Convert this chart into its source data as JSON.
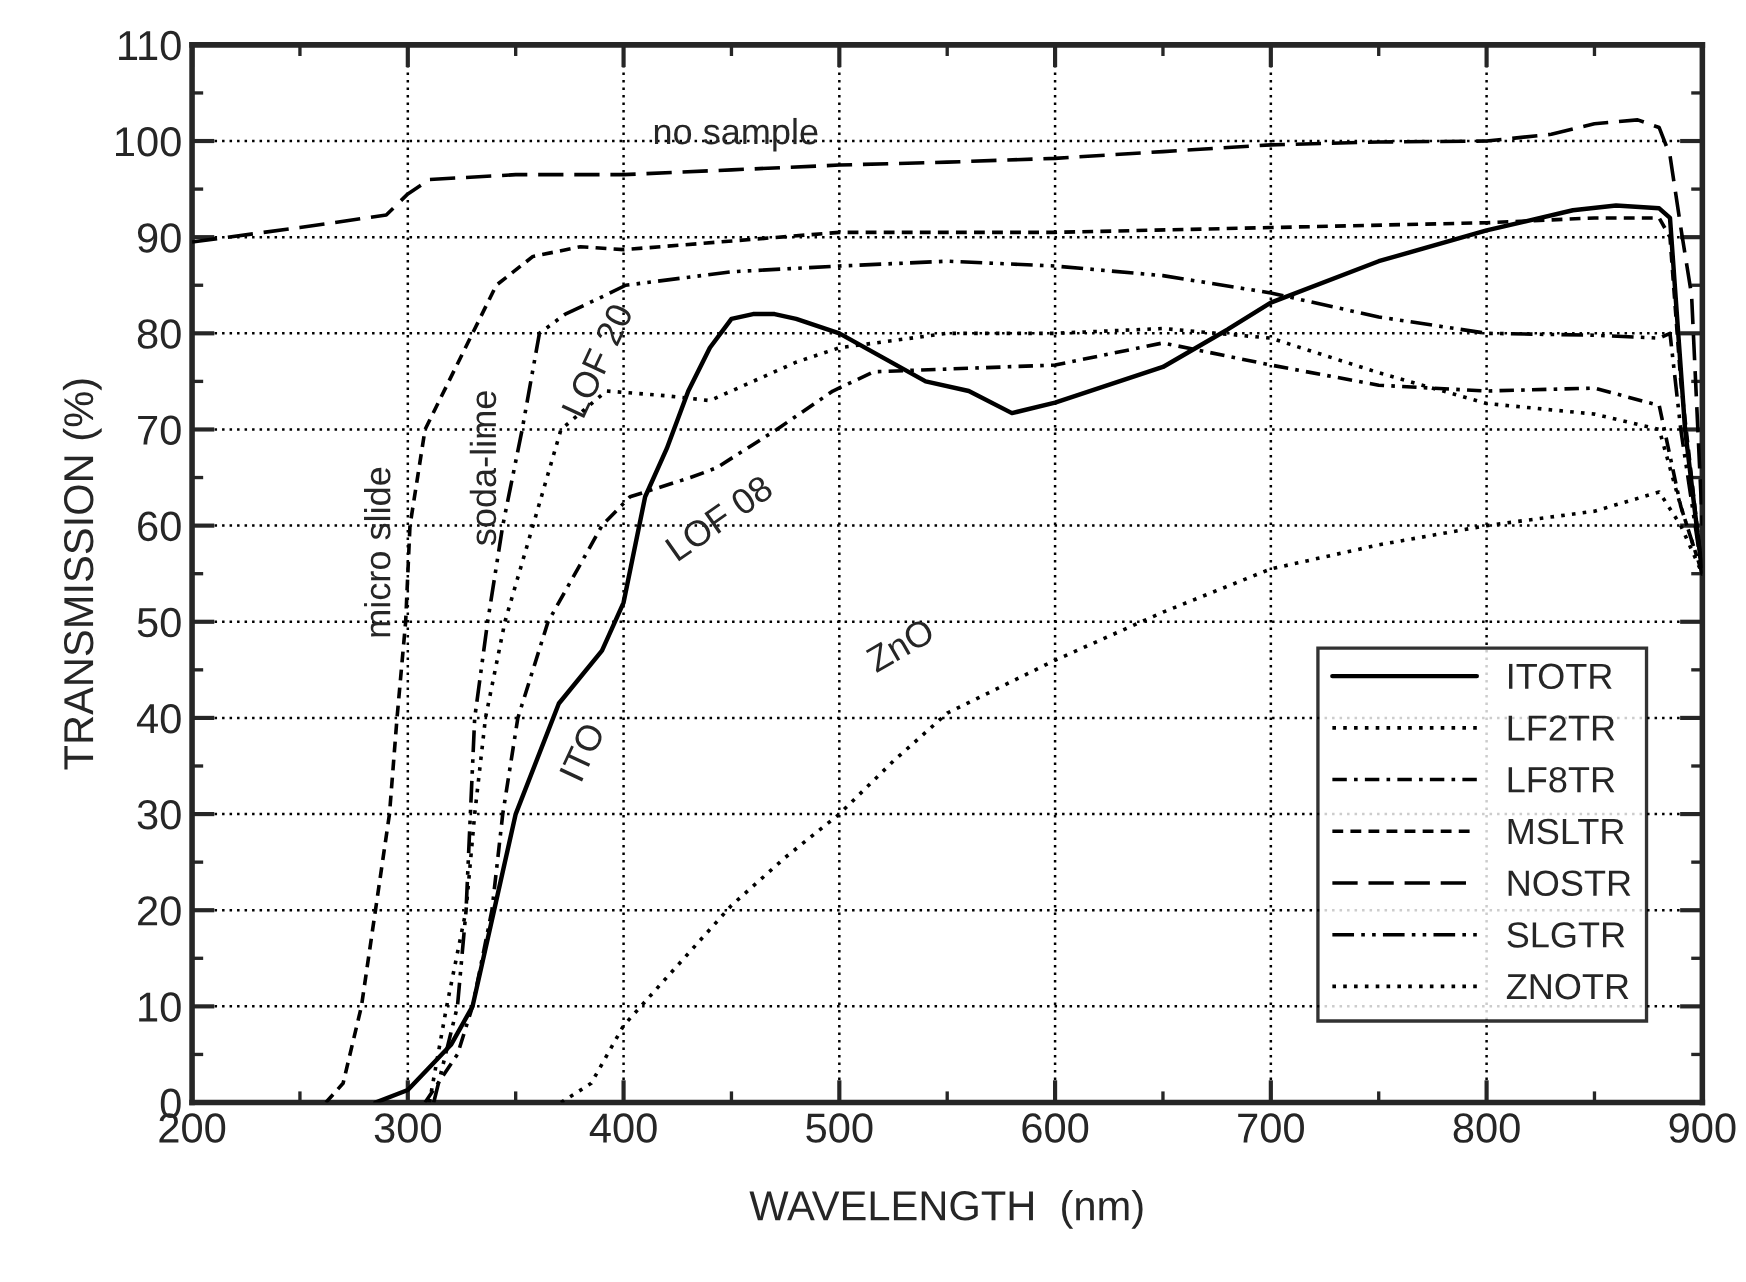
{
  "chart_data": {
    "type": "line",
    "xlabel": "WAVELENGTH  (nm)",
    "ylabel": "TRANSMISSION (%)",
    "xlim": [
      200,
      900
    ],
    "xticks": [
      200,
      300,
      400,
      500,
      600,
      700,
      800,
      900
    ],
    "ylim": [
      0,
      110
    ],
    "yticks": [
      0,
      10,
      20,
      30,
      40,
      50,
      60,
      70,
      80,
      90,
      100,
      110
    ],
    "grid": true,
    "legend": "bottom right",
    "marker": "none",
    "series": [
      {
        "name": "ITOTR",
        "color": "#000000",
        "line_style": "solid",
        "x": [
          285,
          300,
          320,
          330,
          340,
          350,
          370,
          390,
          400,
          410,
          420,
          430,
          440,
          450,
          460,
          470,
          480,
          500,
          520,
          540,
          560,
          580,
          600,
          650,
          680,
          700,
          750,
          800,
          840,
          860,
          880,
          885,
          892,
          900
        ],
        "values": [
          0,
          1.3,
          6,
          10,
          20,
          30,
          41.5,
          47,
          52,
          63,
          68,
          74,
          78.5,
          81.5,
          82,
          82,
          81.5,
          80,
          77.5,
          75,
          74,
          71.7,
          72.8,
          76.5,
          80.4,
          83.2,
          87.5,
          90.7,
          92.8,
          93.3,
          93,
          92,
          70,
          55
        ]
      },
      {
        "name": "LF2TR",
        "color": "#000000",
        "line_style": "dotted",
        "x": [
          310,
          318,
          327,
          331,
          336,
          345,
          358,
          371,
          392,
          420,
          440,
          460,
          480,
          500,
          550,
          600,
          650,
          700,
          750,
          800,
          850,
          880,
          890,
          900
        ],
        "values": [
          0,
          10,
          20,
          30,
          40,
          50,
          60,
          70,
          74,
          73.5,
          73,
          75,
          77,
          78.5,
          80,
          80,
          80.5,
          79.5,
          75.9,
          72.7,
          71.6,
          70,
          62,
          55
        ]
      },
      {
        "name": "LF8TR",
        "color": "#000000",
        "line_style": "dashdot",
        "x": [
          308,
          323,
          330,
          339,
          344,
          351,
          358,
          365,
          390,
          403,
          431,
          443,
          471,
          497,
          516,
          600,
          650,
          700,
          750,
          800,
          850,
          880,
          890,
          900
        ],
        "values": [
          0,
          5,
          10,
          20,
          30,
          40,
          45,
          50,
          60,
          63,
          65,
          66,
          70,
          74,
          76,
          76.7,
          79,
          76.7,
          74.6,
          74,
          74.3,
          72.5,
          62,
          55
        ]
      },
      {
        "name": "MSLTR",
        "color": "#000000",
        "line_style": "dashed",
        "x": [
          262,
          270,
          278.5,
          291.5,
          295,
          299,
          301,
          308,
          330,
          341,
          358,
          380,
          400,
          500,
          600,
          700,
          800,
          850,
          880,
          885,
          890,
          900
        ],
        "values": [
          0,
          2,
          10,
          30,
          40,
          50,
          60,
          70,
          80,
          85,
          88,
          89,
          88.7,
          90.5,
          90.5,
          91,
          91.5,
          92,
          92,
          90,
          75,
          55
        ]
      },
      {
        "name": "NOSTR",
        "color": "#000000",
        "line_style": "longdash",
        "x": [
          200,
          250,
          290,
          300,
          310,
          350,
          400,
          450,
          500,
          550,
          600,
          650,
          700,
          750,
          800,
          830,
          850,
          870,
          880,
          885,
          890,
          895,
          900
        ],
        "values": [
          89.5,
          91,
          92.3,
          94.5,
          96,
          96.5,
          96.5,
          97,
          97.5,
          97.8,
          98.2,
          98.9,
          99.6,
          99.9,
          100,
          100.7,
          101.8,
          102.2,
          101.4,
          98.5,
          91,
          84,
          60
        ]
      },
      {
        "name": "SLGTR",
        "color": "#000000",
        "line_style": "dashdotdot",
        "x": [
          312,
          323,
          327,
          329,
          331,
          337,
          344,
          353,
          361,
          373,
          392,
          401,
          450,
          500,
          550,
          600,
          650,
          700,
          750,
          800,
          850,
          880,
          885,
          890,
          900
        ],
        "values": [
          0,
          10,
          20,
          30,
          40,
          50,
          60,
          70,
          80,
          82,
          84,
          85,
          86.4,
          87,
          87.5,
          87,
          86,
          84.2,
          81.7,
          80,
          79.8,
          79.5,
          80,
          70,
          55
        ]
      },
      {
        "name": "ZNOTR",
        "color": "#000000",
        "line_style": "dotted",
        "x": [
          371,
          385,
          400,
          420,
          450,
          475,
          500,
          525,
          550,
          600,
          650,
          700,
          750,
          800,
          850,
          880,
          890,
          900
        ],
        "values": [
          0,
          2,
          8,
          13,
          20.5,
          25.5,
          30,
          35.5,
          40.5,
          46,
          51,
          55.5,
          58,
          60,
          61.5,
          63.5,
          60,
          55
        ]
      }
    ],
    "annotations": [
      "no sample",
      "micro slide",
      "soda-lime",
      "LOF 20",
      "LOF 08",
      "ITO",
      "ZnO"
    ]
  }
}
